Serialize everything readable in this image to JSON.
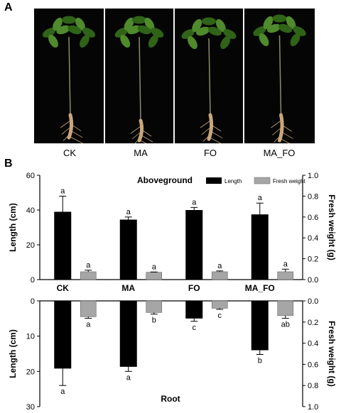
{
  "panel_labels": {
    "a": "A",
    "b": "B"
  },
  "photo_panel": {
    "treatments": [
      "CK",
      "MA",
      "FO",
      "MA_FO"
    ],
    "colors": {
      "background": "#050505",
      "leaf": "#4f8a2c",
      "leaf_dark": "#2f6318",
      "root": "#c9a77a"
    }
  },
  "chart_data": [
    {
      "type": "bar",
      "title": "Aboveground",
      "categories": [
        "CK",
        "MA",
        "FO",
        "MA_FO"
      ],
      "left_axis": {
        "label": "Length (cm)",
        "ylim": [
          0,
          60
        ],
        "ticks": [
          0,
          20,
          40,
          60
        ]
      },
      "right_axis": {
        "label": "Fresh weight (g)",
        "ylim": [
          0,
          1.0
        ],
        "ticks": [
          "0.0",
          "0.2",
          "0.4",
          "0.6",
          "0.8",
          "1.0"
        ]
      },
      "legend": {
        "position": "top-right"
      },
      "series": [
        {
          "name": "Length",
          "axis": "left",
          "color": "#000000",
          "values": [
            39,
            34.5,
            40,
            37.5
          ],
          "errors": [
            9,
            1.5,
            1.5,
            6.5
          ],
          "letters": [
            "a",
            "a",
            "a",
            "a"
          ]
        },
        {
          "name": "Fresh weight",
          "axis": "right",
          "color": "#a6a6a6",
          "values": [
            0.075,
            0.07,
            0.075,
            0.075
          ],
          "errors": [
            0.015,
            0.003,
            0.008,
            0.025
          ],
          "letters": [
            "a",
            "a",
            "a",
            "a"
          ]
        }
      ]
    },
    {
      "type": "bar",
      "title": "Root",
      "orientation": "inverted",
      "categories": [
        "CK",
        "MA",
        "FO",
        "MA_FO"
      ],
      "left_axis": {
        "label": "Length (cm)",
        "ylim": [
          0,
          30
        ],
        "ticks": [
          0,
          10,
          20,
          30
        ]
      },
      "right_axis": {
        "label": "Fresh weight (g)",
        "ylim": [
          0,
          1.0
        ],
        "ticks": [
          "0.0",
          "0.2",
          "0.4",
          "0.6",
          "0.8",
          "1.0"
        ]
      },
      "series": [
        {
          "name": "Length",
          "axis": "left",
          "color": "#000000",
          "values": [
            19.2,
            18.7,
            5.0,
            14.0
          ],
          "errors": [
            4.8,
            1.3,
            0.8,
            1.2
          ],
          "letters": [
            "a",
            "a",
            "c",
            "b"
          ]
        },
        {
          "name": "Fresh weight",
          "axis": "right",
          "color": "#a6a6a6",
          "values": [
            0.15,
            0.11,
            0.07,
            0.14
          ],
          "errors": [
            0.015,
            0.015,
            0.01,
            0.025
          ],
          "letters": [
            "a",
            "b",
            "c",
            "ab"
          ]
        }
      ]
    }
  ]
}
